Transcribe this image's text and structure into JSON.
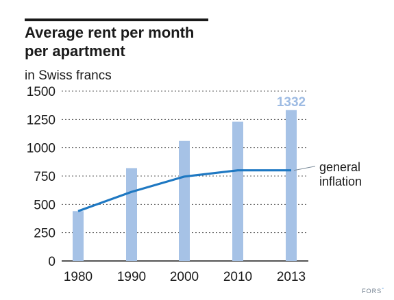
{
  "header": {
    "title_line1": "Average rent per month",
    "title_line2": "per apartment",
    "unit": "in Swiss francs"
  },
  "credit": {
    "text": "FORS",
    "mark": "°"
  },
  "colors": {
    "bar": "#a6c2e6",
    "line": "#1e78c2",
    "highlight_label": "#9dbbe3",
    "grid": "#555555",
    "text": "#1a1a1a"
  },
  "chart_data": {
    "type": "bar",
    "categories": [
      "1980",
      "1990",
      "2000",
      "2010",
      "2013"
    ],
    "series": [
      {
        "values": [
          440,
          820,
          1060,
          1230,
          1332
        ]
      },
      {
        "name": "general inflation",
        "type": "line",
        "values": [
          440,
          610,
          745,
          800,
          800
        ]
      }
    ],
    "yticks": [
      "0",
      "250",
      "500",
      "750",
      "1000",
      "1250",
      "1500"
    ],
    "ylim": [
      0,
      1500
    ],
    "grid": true,
    "annotation": {
      "category": "2013",
      "text": "1332"
    },
    "line_label_lines": [
      "general",
      "inflation"
    ]
  }
}
